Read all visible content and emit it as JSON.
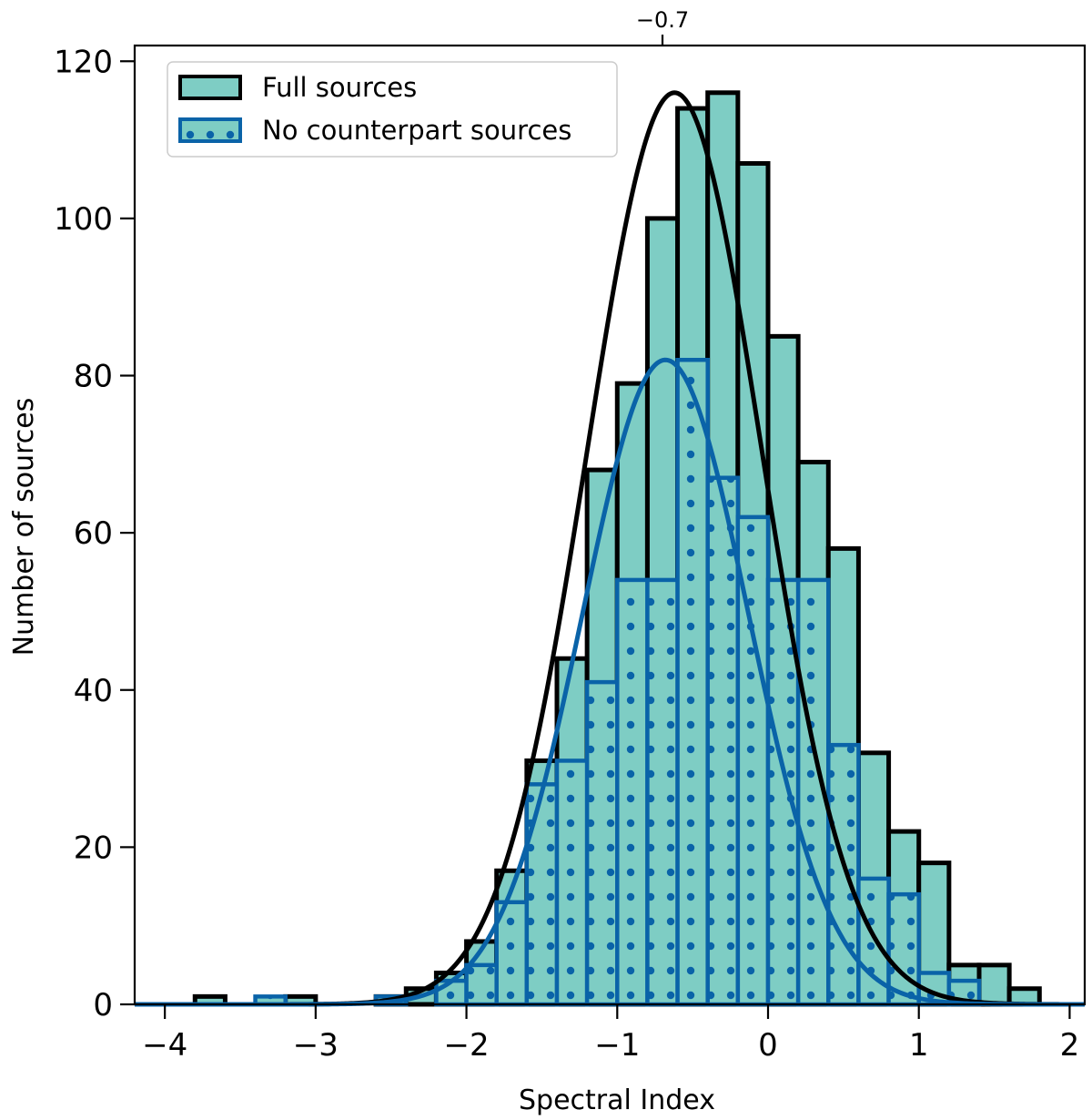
{
  "chart_data": {
    "type": "bar",
    "xlabel": "Spectral Index",
    "ylabel": "Number of sources",
    "xlim": [
      -4.2,
      2.1
    ],
    "ylim": [
      0,
      122
    ],
    "xticks": [
      -4,
      -3,
      -2,
      -1,
      0,
      1,
      2
    ],
    "xtick_labels": [
      "−4",
      "−3",
      "−2",
      "−1",
      "0",
      "1",
      "2"
    ],
    "yticks": [
      0,
      20,
      40,
      60,
      80,
      100,
      120
    ],
    "ytick_labels": [
      "0",
      "20",
      "40",
      "60",
      "80",
      "100",
      "120"
    ],
    "top_tick": {
      "value": -0.7,
      "label": "−0.7"
    },
    "bin_width": 0.2,
    "legend_position": "upper-left",
    "series": [
      {
        "name": "Full sources",
        "fill": "#7ecdc4",
        "edge": "#000000",
        "hatch": "none",
        "bins": [
          {
            "x0": -3.8,
            "count": 1
          },
          {
            "x0": -3.2,
            "count": 1
          },
          {
            "x0": -2.6,
            "count": 1
          },
          {
            "x0": -2.4,
            "count": 2
          },
          {
            "x0": -2.2,
            "count": 4
          },
          {
            "x0": -2.0,
            "count": 8
          },
          {
            "x0": -1.8,
            "count": 17
          },
          {
            "x0": -1.6,
            "count": 31
          },
          {
            "x0": -1.4,
            "count": 44
          },
          {
            "x0": -1.2,
            "count": 68
          },
          {
            "x0": -1.0,
            "count": 79
          },
          {
            "x0": -0.8,
            "count": 100
          },
          {
            "x0": -0.6,
            "count": 114
          },
          {
            "x0": -0.4,
            "count": 116
          },
          {
            "x0": -0.2,
            "count": 107
          },
          {
            "x0": 0.0,
            "count": 85
          },
          {
            "x0": 0.2,
            "count": 69
          },
          {
            "x0": 0.4,
            "count": 58
          },
          {
            "x0": 0.6,
            "count": 32
          },
          {
            "x0": 0.8,
            "count": 22
          },
          {
            "x0": 1.0,
            "count": 18
          },
          {
            "x0": 1.2,
            "count": 5
          },
          {
            "x0": 1.4,
            "count": 5
          },
          {
            "x0": 1.6,
            "count": 2
          }
        ],
        "fit": {
          "mu": -0.62,
          "sigma": 0.58,
          "amplitude": 116,
          "color": "#000000"
        }
      },
      {
        "name": "No counterpart sources",
        "fill": "#7ecdc4",
        "edge": "#0a63a8",
        "hatch": "dots",
        "bins": [
          {
            "x0": -3.4,
            "count": 1
          },
          {
            "x0": -2.6,
            "count": 1
          },
          {
            "x0": -2.2,
            "count": 3
          },
          {
            "x0": -2.0,
            "count": 5
          },
          {
            "x0": -1.8,
            "count": 13
          },
          {
            "x0": -1.6,
            "count": 28
          },
          {
            "x0": -1.4,
            "count": 31
          },
          {
            "x0": -1.2,
            "count": 41
          },
          {
            "x0": -1.0,
            "count": 54
          },
          {
            "x0": -0.8,
            "count": 54
          },
          {
            "x0": -0.6,
            "count": 82
          },
          {
            "x0": -0.4,
            "count": 67
          },
          {
            "x0": -0.2,
            "count": 62
          },
          {
            "x0": 0.0,
            "count": 54
          },
          {
            "x0": 0.2,
            "count": 54
          },
          {
            "x0": 0.4,
            "count": 33
          },
          {
            "x0": 0.6,
            "count": 16
          },
          {
            "x0": 0.8,
            "count": 14
          },
          {
            "x0": 1.0,
            "count": 4
          },
          {
            "x0": 1.2,
            "count": 3
          }
        ],
        "fit": {
          "mu": -0.68,
          "sigma": 0.55,
          "amplitude": 82,
          "color": "#0a63a8"
        }
      }
    ]
  }
}
